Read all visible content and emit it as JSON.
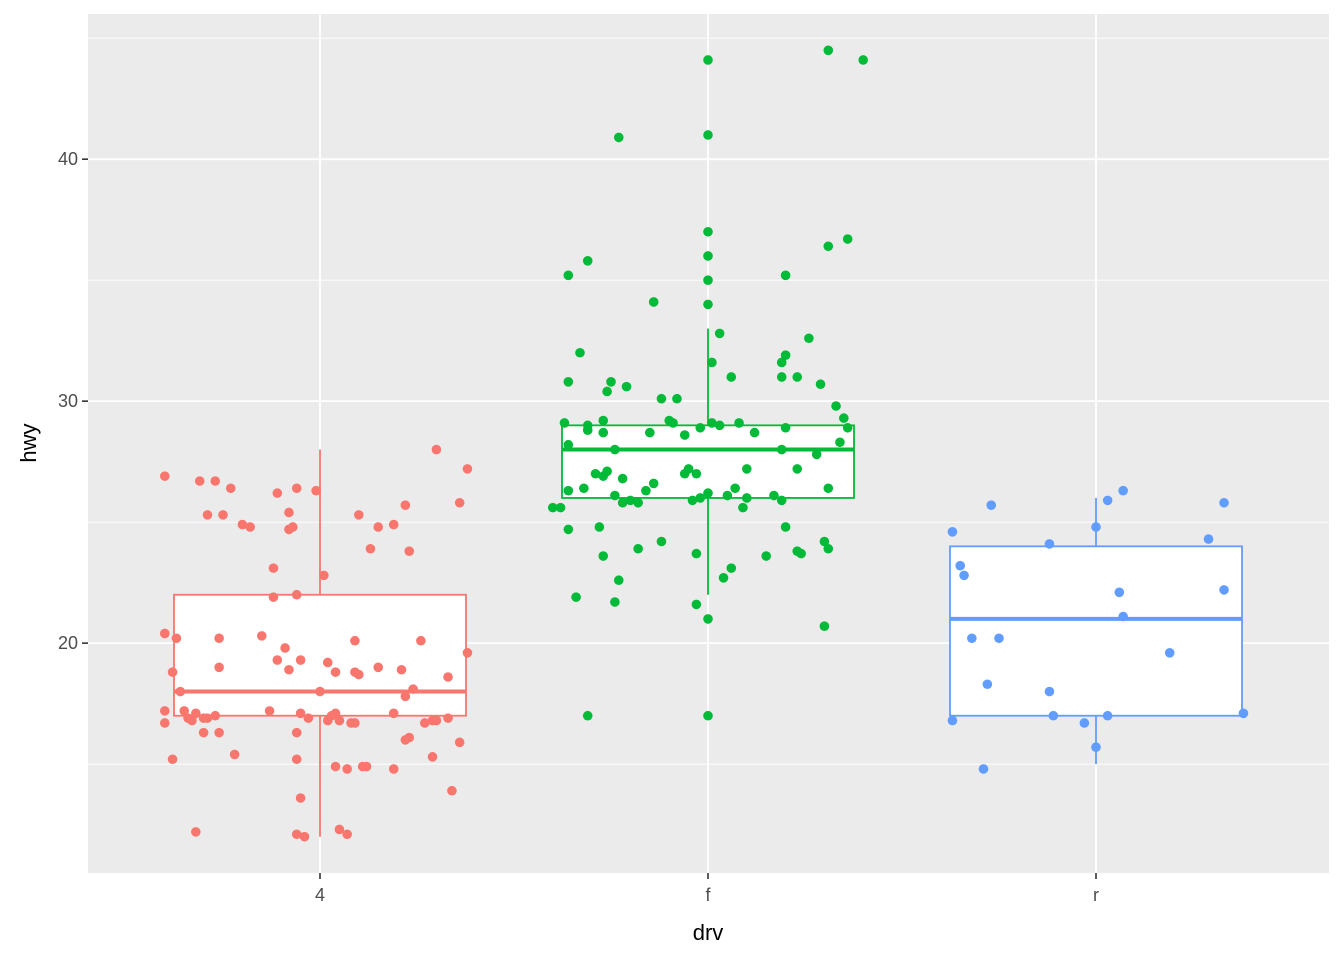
{
  "chart_data": {
    "type": "boxplot",
    "xlabel": "drv",
    "ylabel": "hwy",
    "categories": [
      "4",
      "f",
      "r"
    ],
    "ylim": [
      10.5,
      46
    ],
    "yticks": [
      20,
      30,
      40
    ],
    "grid": true,
    "legend": "none",
    "colors": {
      "panel_bg": "#EBEBEB",
      "grid": "#FFFFFF",
      "4": "#F8766D",
      "f": "#00BA38",
      "r": "#619CFF"
    },
    "boxes": [
      {
        "category": "4",
        "lower_whisker": 12,
        "q1": 17,
        "median": 18,
        "q3": 22,
        "upper_whisker": 28
      },
      {
        "category": "f",
        "lower_whisker": 22,
        "q1": 26,
        "median": 28,
        "q3": 29,
        "upper_whisker": 33
      },
      {
        "category": "r",
        "lower_whisker": 15,
        "q1": 17,
        "median": 21,
        "q3": 24,
        "upper_whisker": 26
      }
    ],
    "points": [
      {
        "category": "4",
        "values": [
          {
            "x": 0.6,
            "y": 26.9
          },
          {
            "x": 0.69,
            "y": 26.7
          },
          {
            "x": 0.73,
            "y": 26.7
          },
          {
            "x": 0.77,
            "y": 26.4
          },
          {
            "x": 0.89,
            "y": 26.2
          },
          {
            "x": 0.94,
            "y": 26.4
          },
          {
            "x": 0.99,
            "y": 26.3
          },
          {
            "x": 0.71,
            "y": 25.3
          },
          {
            "x": 0.75,
            "y": 25.3
          },
          {
            "x": 0.92,
            "y": 25.4
          },
          {
            "x": 1.1,
            "y": 25.3
          },
          {
            "x": 1.22,
            "y": 25.7
          },
          {
            "x": 1.36,
            "y": 25.8
          },
          {
            "x": 0.8,
            "y": 24.9
          },
          {
            "x": 0.82,
            "y": 24.8
          },
          {
            "x": 0.92,
            "y": 24.7
          },
          {
            "x": 0.93,
            "y": 24.8
          },
          {
            "x": 1.15,
            "y": 24.8
          },
          {
            "x": 1.19,
            "y": 24.9
          },
          {
            "x": 1.3,
            "y": 28.0
          },
          {
            "x": 1.38,
            "y": 27.2
          },
          {
            "x": 1.13,
            "y": 23.9
          },
          {
            "x": 1.23,
            "y": 23.8
          },
          {
            "x": 0.88,
            "y": 23.1
          },
          {
            "x": 1.01,
            "y": 22.8
          },
          {
            "x": 0.88,
            "y": 21.9
          },
          {
            "x": 0.94,
            "y": 22.0
          },
          {
            "x": 0.6,
            "y": 20.4
          },
          {
            "x": 0.63,
            "y": 20.2
          },
          {
            "x": 0.74,
            "y": 20.2
          },
          {
            "x": 0.85,
            "y": 20.3
          },
          {
            "x": 0.91,
            "y": 19.8
          },
          {
            "x": 1.09,
            "y": 20.1
          },
          {
            "x": 1.26,
            "y": 20.1
          },
          {
            "x": 1.38,
            "y": 19.6
          },
          {
            "x": 0.62,
            "y": 18.8
          },
          {
            "x": 0.74,
            "y": 19.0
          },
          {
            "x": 0.89,
            "y": 19.3
          },
          {
            "x": 0.92,
            "y": 18.9
          },
          {
            "x": 0.95,
            "y": 19.3
          },
          {
            "x": 1.02,
            "y": 19.2
          },
          {
            "x": 1.04,
            "y": 18.8
          },
          {
            "x": 1.09,
            "y": 18.8
          },
          {
            "x": 1.1,
            "y": 18.7
          },
          {
            "x": 1.15,
            "y": 19.0
          },
          {
            "x": 1.21,
            "y": 18.9
          },
          {
            "x": 1.33,
            "y": 18.6
          },
          {
            "x": 0.64,
            "y": 18.0
          },
          {
            "x": 1.0,
            "y": 18.0
          },
          {
            "x": 1.22,
            "y": 17.8
          },
          {
            "x": 1.24,
            "y": 18.1
          },
          {
            "x": 0.6,
            "y": 17.2
          },
          {
            "x": 0.65,
            "y": 17.2
          },
          {
            "x": 0.66,
            "y": 16.9
          },
          {
            "x": 0.67,
            "y": 16.8
          },
          {
            "x": 0.68,
            "y": 17.1
          },
          {
            "x": 0.7,
            "y": 16.9
          },
          {
            "x": 0.71,
            "y": 16.9
          },
          {
            "x": 0.73,
            "y": 17.0
          },
          {
            "x": 0.87,
            "y": 17.2
          },
          {
            "x": 0.95,
            "y": 17.1
          },
          {
            "x": 0.97,
            "y": 16.9
          },
          {
            "x": 1.02,
            "y": 16.8
          },
          {
            "x": 1.03,
            "y": 17.0
          },
          {
            "x": 1.04,
            "y": 17.1
          },
          {
            "x": 1.05,
            "y": 16.8
          },
          {
            "x": 1.08,
            "y": 16.7
          },
          {
            "x": 1.09,
            "y": 16.7
          },
          {
            "x": 1.19,
            "y": 17.1
          },
          {
            "x": 1.27,
            "y": 16.7
          },
          {
            "x": 1.29,
            "y": 16.8
          },
          {
            "x": 1.3,
            "y": 16.8
          },
          {
            "x": 1.33,
            "y": 16.9
          },
          {
            "x": 0.6,
            "y": 16.7
          },
          {
            "x": 0.7,
            "y": 16.3
          },
          {
            "x": 0.74,
            "y": 16.3
          },
          {
            "x": 0.94,
            "y": 16.3
          },
          {
            "x": 1.23,
            "y": 16.1
          },
          {
            "x": 1.22,
            "y": 16.0
          },
          {
            "x": 1.36,
            "y": 15.9
          },
          {
            "x": 0.62,
            "y": 15.2
          },
          {
            "x": 0.78,
            "y": 15.4
          },
          {
            "x": 0.94,
            "y": 15.2
          },
          {
            "x": 1.29,
            "y": 15.3
          },
          {
            "x": 1.04,
            "y": 14.9
          },
          {
            "x": 1.07,
            "y": 14.8
          },
          {
            "x": 1.11,
            "y": 14.9
          },
          {
            "x": 1.12,
            "y": 14.9
          },
          {
            "x": 1.19,
            "y": 14.8
          },
          {
            "x": 0.95,
            "y": 13.6
          },
          {
            "x": 1.34,
            "y": 13.9
          },
          {
            "x": 0.68,
            "y": 12.2
          },
          {
            "x": 0.94,
            "y": 12.1
          },
          {
            "x": 0.96,
            "y": 12.0
          },
          {
            "x": 1.05,
            "y": 12.3
          },
          {
            "x": 1.07,
            "y": 12.1
          }
        ]
      },
      {
        "category": "f",
        "values": [
          {
            "x": 2.31,
            "y": 44.5
          },
          {
            "x": 2.4,
            "y": 44.1
          },
          {
            "x": 2.0,
            "y": 44.1
          },
          {
            "x": 1.77,
            "y": 40.9
          },
          {
            "x": 2.0,
            "y": 41.0
          },
          {
            "x": 2.0,
            "y": 37.0
          },
          {
            "x": 2.36,
            "y": 36.7
          },
          {
            "x": 2.31,
            "y": 36.4
          },
          {
            "x": 2.0,
            "y": 36.0
          },
          {
            "x": 1.69,
            "y": 35.8
          },
          {
            "x": 1.64,
            "y": 35.2
          },
          {
            "x": 2.0,
            "y": 35.0
          },
          {
            "x": 2.2,
            "y": 35.2
          },
          {
            "x": 1.86,
            "y": 34.1
          },
          {
            "x": 2.0,
            "y": 34.0
          },
          {
            "x": 2.03,
            "y": 32.8
          },
          {
            "x": 2.26,
            "y": 32.6
          },
          {
            "x": 1.67,
            "y": 32.0
          },
          {
            "x": 2.01,
            "y": 31.6
          },
          {
            "x": 2.2,
            "y": 31.9
          },
          {
            "x": 2.19,
            "y": 31.6
          },
          {
            "x": 2.06,
            "y": 31.0
          },
          {
            "x": 2.19,
            "y": 31.0
          },
          {
            "x": 2.23,
            "y": 31.0
          },
          {
            "x": 1.64,
            "y": 30.8
          },
          {
            "x": 1.75,
            "y": 30.8
          },
          {
            "x": 1.79,
            "y": 30.6
          },
          {
            "x": 1.74,
            "y": 30.4
          },
          {
            "x": 1.88,
            "y": 30.1
          },
          {
            "x": 1.92,
            "y": 30.1
          },
          {
            "x": 2.29,
            "y": 30.7
          },
          {
            "x": 2.33,
            "y": 29.8
          },
          {
            "x": 1.63,
            "y": 29.1
          },
          {
            "x": 1.73,
            "y": 29.2
          },
          {
            "x": 1.69,
            "y": 29.0
          },
          {
            "x": 1.9,
            "y": 29.2
          },
          {
            "x": 1.91,
            "y": 29.1
          },
          {
            "x": 1.94,
            "y": 28.6
          },
          {
            "x": 1.98,
            "y": 28.9
          },
          {
            "x": 2.01,
            "y": 29.1
          },
          {
            "x": 2.03,
            "y": 29.0
          },
          {
            "x": 2.08,
            "y": 29.1
          },
          {
            "x": 2.12,
            "y": 28.7
          },
          {
            "x": 2.2,
            "y": 28.9
          },
          {
            "x": 2.35,
            "y": 29.3
          },
          {
            "x": 2.36,
            "y": 28.9
          },
          {
            "x": 1.64,
            "y": 28.2
          },
          {
            "x": 1.69,
            "y": 28.8
          },
          {
            "x": 1.73,
            "y": 28.7
          },
          {
            "x": 1.76,
            "y": 28.0
          },
          {
            "x": 1.85,
            "y": 28.7
          },
          {
            "x": 2.19,
            "y": 28.0
          },
          {
            "x": 2.28,
            "y": 27.8
          },
          {
            "x": 2.34,
            "y": 28.3
          },
          {
            "x": 1.71,
            "y": 27.0
          },
          {
            "x": 1.73,
            "y": 26.9
          },
          {
            "x": 1.74,
            "y": 27.1
          },
          {
            "x": 1.78,
            "y": 26.8
          },
          {
            "x": 1.86,
            "y": 26.6
          },
          {
            "x": 1.94,
            "y": 27.0
          },
          {
            "x": 1.95,
            "y": 27.2
          },
          {
            "x": 1.97,
            "y": 27.0
          },
          {
            "x": 2.1,
            "y": 27.2
          },
          {
            "x": 2.23,
            "y": 27.2
          },
          {
            "x": 1.64,
            "y": 26.3
          },
          {
            "x": 1.68,
            "y": 26.4
          },
          {
            "x": 1.76,
            "y": 26.1
          },
          {
            "x": 1.78,
            "y": 25.8
          },
          {
            "x": 1.8,
            "y": 25.9
          },
          {
            "x": 1.82,
            "y": 25.8
          },
          {
            "x": 1.84,
            "y": 26.3
          },
          {
            "x": 1.96,
            "y": 25.9
          },
          {
            "x": 1.98,
            "y": 26.0
          },
          {
            "x": 2.0,
            "y": 26.2
          },
          {
            "x": 2.05,
            "y": 26.1
          },
          {
            "x": 2.07,
            "y": 26.4
          },
          {
            "x": 2.1,
            "y": 26.0
          },
          {
            "x": 2.17,
            "y": 26.1
          },
          {
            "x": 2.19,
            "y": 25.9
          },
          {
            "x": 2.31,
            "y": 26.4
          },
          {
            "x": 1.6,
            "y": 25.6
          },
          {
            "x": 1.62,
            "y": 25.6
          },
          {
            "x": 2.09,
            "y": 25.6
          },
          {
            "x": 1.64,
            "y": 24.7
          },
          {
            "x": 1.72,
            "y": 24.8
          },
          {
            "x": 2.2,
            "y": 24.8
          },
          {
            "x": 1.88,
            "y": 24.2
          },
          {
            "x": 1.97,
            "y": 23.7
          },
          {
            "x": 1.82,
            "y": 23.9
          },
          {
            "x": 1.73,
            "y": 23.6
          },
          {
            "x": 2.15,
            "y": 23.6
          },
          {
            "x": 2.23,
            "y": 23.8
          },
          {
            "x": 2.24,
            "y": 23.7
          },
          {
            "x": 2.3,
            "y": 24.2
          },
          {
            "x": 2.31,
            "y": 23.9
          },
          {
            "x": 2.06,
            "y": 23.1
          },
          {
            "x": 2.04,
            "y": 22.7
          },
          {
            "x": 1.77,
            "y": 22.6
          },
          {
            "x": 1.66,
            "y": 21.9
          },
          {
            "x": 1.76,
            "y": 21.7
          },
          {
            "x": 1.97,
            "y": 21.6
          },
          {
            "x": 2.0,
            "y": 21.0
          },
          {
            "x": 2.3,
            "y": 20.7
          },
          {
            "x": 1.69,
            "y": 17.0
          },
          {
            "x": 2.0,
            "y": 17.0
          }
        ]
      },
      {
        "category": "r",
        "values": [
          {
            "x": 2.63,
            "y": 24.6
          },
          {
            "x": 2.73,
            "y": 25.7
          },
          {
            "x": 3.03,
            "y": 25.9
          },
          {
            "x": 3.07,
            "y": 26.3
          },
          {
            "x": 3.33,
            "y": 25.8
          },
          {
            "x": 3.29,
            "y": 24.3
          },
          {
            "x": 2.88,
            "y": 24.1
          },
          {
            "x": 3.0,
            "y": 24.8
          },
          {
            "x": 2.65,
            "y": 23.2
          },
          {
            "x": 2.66,
            "y": 22.8
          },
          {
            "x": 3.06,
            "y": 22.1
          },
          {
            "x": 3.33,
            "y": 22.2
          },
          {
            "x": 3.07,
            "y": 21.1
          },
          {
            "x": 2.68,
            "y": 20.2
          },
          {
            "x": 2.75,
            "y": 20.2
          },
          {
            "x": 3.19,
            "y": 19.6
          },
          {
            "x": 2.72,
            "y": 18.3
          },
          {
            "x": 2.88,
            "y": 18.0
          },
          {
            "x": 2.63,
            "y": 16.8
          },
          {
            "x": 2.89,
            "y": 17.0
          },
          {
            "x": 2.97,
            "y": 16.7
          },
          {
            "x": 3.03,
            "y": 17.0
          },
          {
            "x": 3.38,
            "y": 17.1
          },
          {
            "x": 3.0,
            "y": 15.7
          },
          {
            "x": 2.71,
            "y": 14.8
          }
        ]
      }
    ]
  }
}
